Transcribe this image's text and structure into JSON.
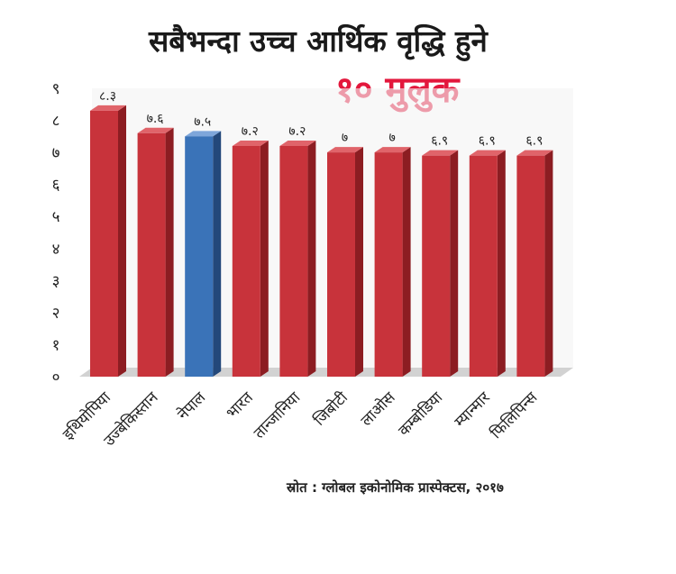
{
  "chart_data": {
    "type": "bar",
    "title": "सबैभन्दा उच्च आर्थिक वृद्धि हुने",
    "subtitle": "१० मुलुक",
    "source": "स्रोत : ग्लोबल इकोनोमिक प्रास्पेक्टस, २०१७",
    "categories": [
      "इथियोपिया",
      "उज्बेकिस्तान",
      "नेपाल",
      "भारत",
      "तान्जानिया",
      "जिबोटी",
      "लाओस",
      "कम्बोडिया",
      "म्यान्मार",
      "फिलिपिन्स"
    ],
    "values": [
      8.3,
      7.6,
      7.5,
      7.2,
      7.2,
      7,
      7,
      6.9,
      6.9,
      6.9
    ],
    "value_labels": [
      "८.३",
      "७.६",
      "७.५",
      "७.२",
      "७.२",
      "७",
      "७",
      "६.९",
      "६.९",
      "६.९"
    ],
    "ylim": [
      0,
      9
    ],
    "yticks": [
      "०",
      "१",
      "२",
      "३",
      "४",
      "५",
      "६",
      "७",
      "८",
      "९"
    ],
    "highlight_index": 2,
    "colors": {
      "bar": "#c8333b",
      "bar_side": "#8c1d22",
      "bar_top": "#e0646a",
      "highlight": "#3a73b8",
      "highlight_side": "#23487a",
      "highlight_top": "#7ea6da",
      "floor": "#d2d2d2",
      "wall": "#f4f4f4"
    },
    "grid": false
  }
}
